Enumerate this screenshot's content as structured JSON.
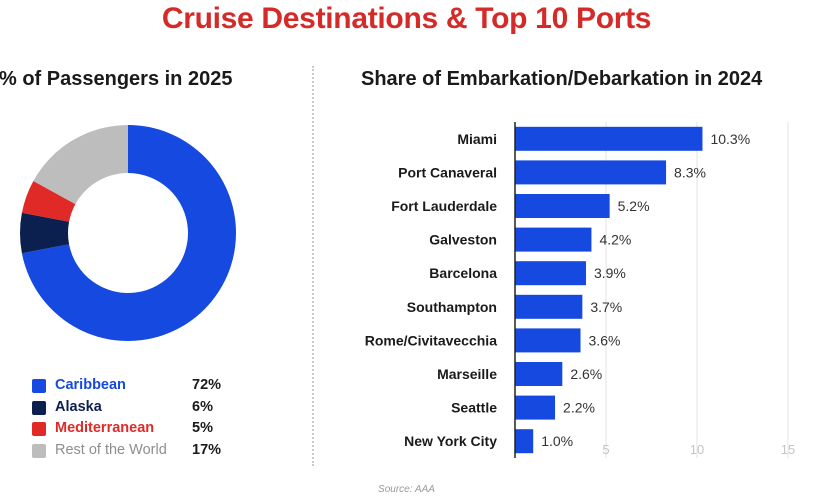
{
  "title": "Cruise Destinations & Top 10 Ports",
  "source": "Source: AAA",
  "colors": {
    "title": "#d42a28",
    "bar": "#1549e0",
    "axis": "#222222",
    "grid": "#e3e3e3"
  },
  "chart_data": [
    {
      "type": "pie",
      "variant": "donut",
      "title": "% of Passengers in 2025",
      "categories": [
        "Caribbean",
        "Alaska",
        "Mediterranean",
        "Rest of the World"
      ],
      "values": [
        72,
        6,
        5,
        17
      ],
      "value_labels": [
        "72%",
        "6%",
        "5%",
        "17%"
      ],
      "colors": [
        "#1549e0",
        "#0c2050",
        "#e02a28",
        "#bdbdbd"
      ],
      "label_colors": [
        "#1549e0",
        "#0c2050",
        "#e02a28",
        "#8e8e8e"
      ],
      "legend": "bottom"
    },
    {
      "type": "bar",
      "orientation": "horizontal",
      "title": "Share of Embarkation/Debarkation in 2024",
      "categories": [
        "Miami",
        "Port Canaveral",
        "Fort Lauderdale",
        "Galveston",
        "Barcelona",
        "Southampton",
        "Rome/Civitavecchia",
        "Marseille",
        "Seattle",
        "New York City"
      ],
      "values": [
        10.3,
        8.3,
        5.2,
        4.2,
        3.9,
        3.7,
        3.6,
        2.6,
        2.2,
        1.0
      ],
      "value_labels": [
        "10.3%",
        "8.3%",
        "5.2%",
        "4.2%",
        "3.9%",
        "3.7%",
        "3.6%",
        "2.6%",
        "2.2%",
        "1.0%"
      ],
      "xlim": [
        0,
        15
      ],
      "xticks": [
        5,
        10,
        15
      ],
      "grid": true
    }
  ]
}
